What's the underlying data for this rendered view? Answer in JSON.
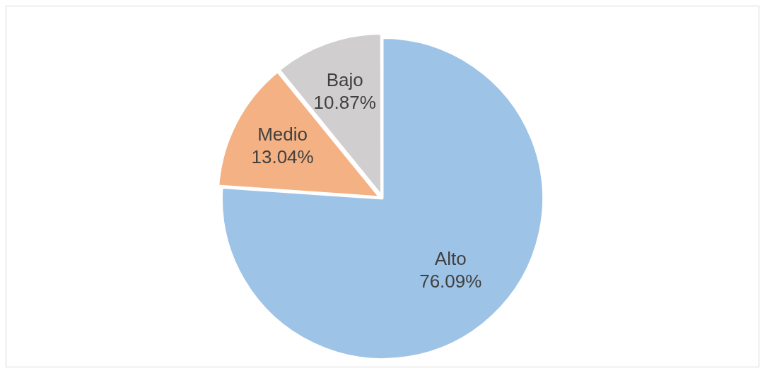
{
  "chart_data": {
    "type": "pie",
    "categories": [
      "Alto",
      "Medio",
      "Bajo"
    ],
    "values": [
      76.09,
      13.04,
      10.87
    ],
    "value_labels": [
      "76.09%",
      "13.04%",
      "10.87%"
    ],
    "colors": [
      "#9dc3e6",
      "#f4b183",
      "#d0cece"
    ],
    "legend": false
  }
}
